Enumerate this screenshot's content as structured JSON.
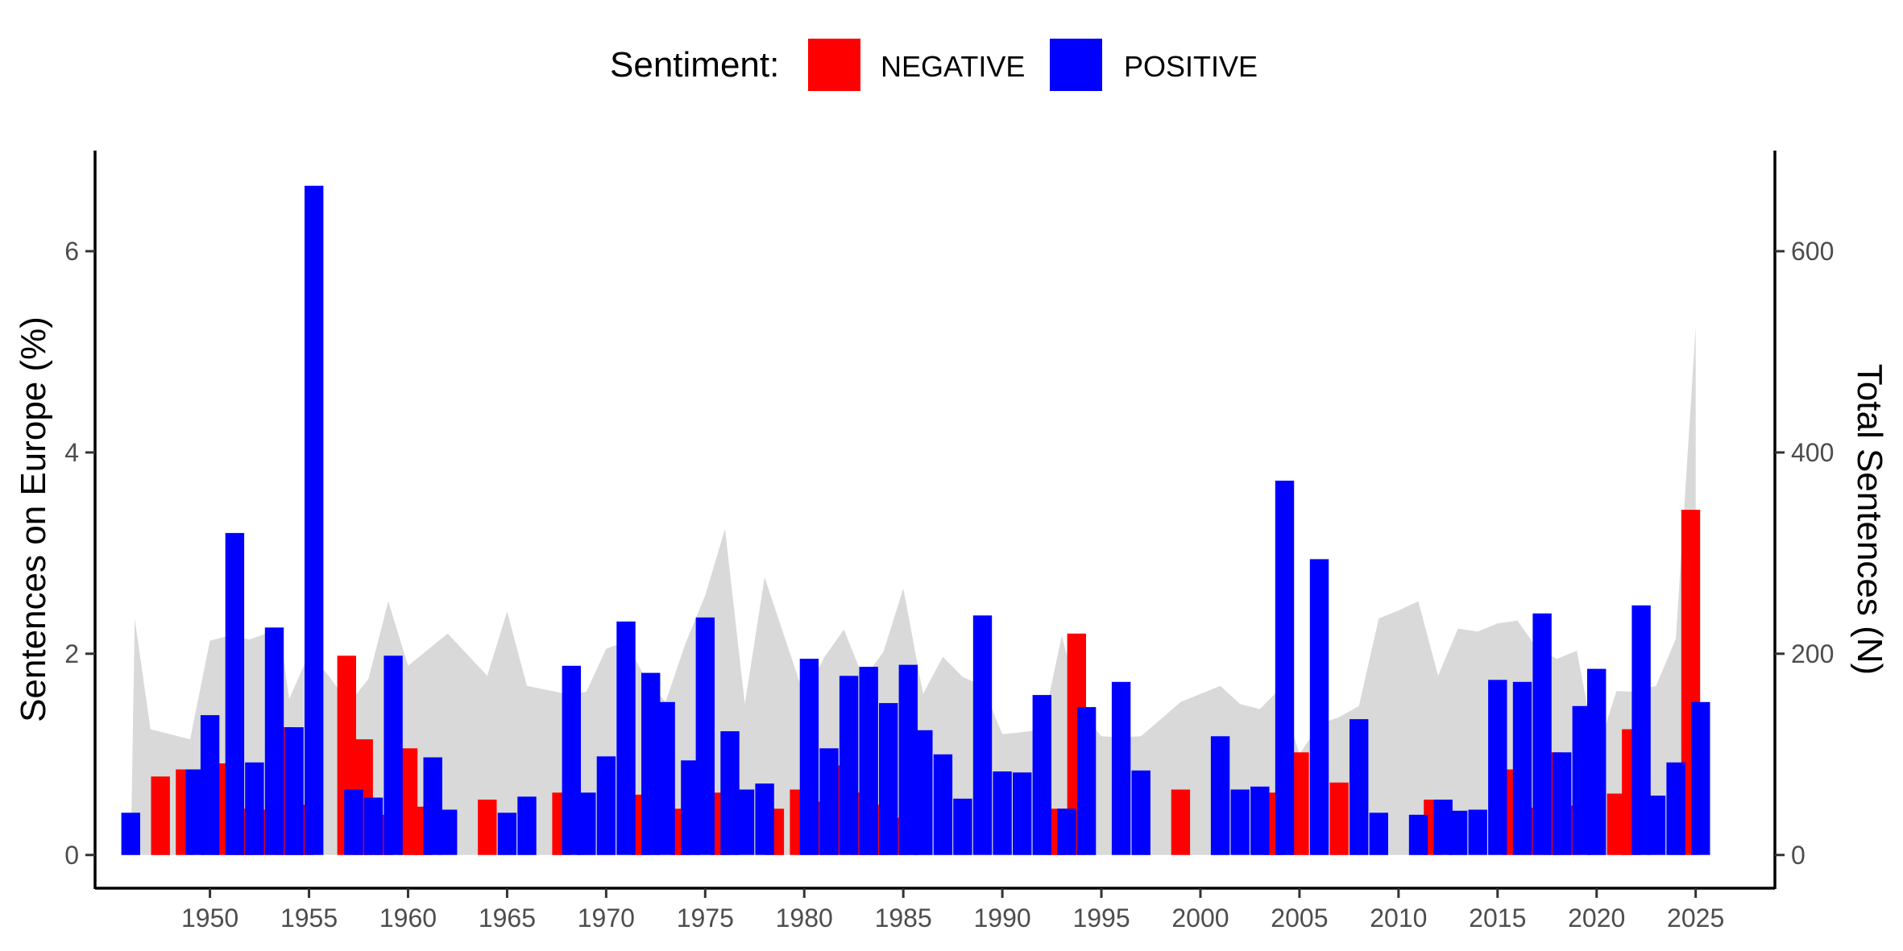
{
  "chart_data": {
    "type": "bar",
    "legend": {
      "title": "Sentiment:",
      "placement": "top-center",
      "entries": [
        {
          "label": "NEGATIVE",
          "color": "#FF0000"
        },
        {
          "label": "POSITIVE",
          "color": "#0000FF"
        }
      ]
    },
    "ylabel": "Sentences on Europe (%)",
    "ylabel_right": "Total Sentences (N)",
    "xlim": [
      1944.2,
      2029
    ],
    "ylim": [
      -0.33,
      7
    ],
    "ylim_right": [
      -33,
      700
    ],
    "xticks": [
      1950,
      1955,
      1960,
      1965,
      1970,
      1975,
      1980,
      1985,
      1990,
      1995,
      2000,
      2005,
      2010,
      2015,
      2020,
      2025
    ],
    "yticks": [
      0,
      2,
      4,
      6
    ],
    "yticks_right": [
      0,
      200,
      400,
      600
    ],
    "grid": false,
    "series": [
      {
        "name": "NEGATIVE",
        "color": "#FF0000",
        "values": [
          {
            "x": 1947.5,
            "y": 0.78
          },
          {
            "x": 1948.75,
            "y": 0.85
          },
          {
            "x": 1950.75,
            "y": 0.91
          },
          {
            "x": 1951.75,
            "y": 0.46
          },
          {
            "x": 1952.75,
            "y": 0.45
          },
          {
            "x": 1953.75,
            "y": 1.27
          },
          {
            "x": 1954.75,
            "y": 0.5
          },
          {
            "x": 1956.9,
            "y": 1.98
          },
          {
            "x": 1957.75,
            "y": 1.15
          },
          {
            "x": 1958.75,
            "y": 0.4
          },
          {
            "x": 1960.0,
            "y": 1.06
          },
          {
            "x": 1960.75,
            "y": 0.48
          },
          {
            "x": 1964.0,
            "y": 0.55
          },
          {
            "x": 1967.75,
            "y": 0.62
          },
          {
            "x": 1971.75,
            "y": 0.6
          },
          {
            "x": 1973.75,
            "y": 0.46
          },
          {
            "x": 1975.75,
            "y": 0.62
          },
          {
            "x": 1978.5,
            "y": 0.46
          },
          {
            "x": 1979.75,
            "y": 0.65
          },
          {
            "x": 1980.75,
            "y": 0.53
          },
          {
            "x": 1981.75,
            "y": 0.89
          },
          {
            "x": 1982.75,
            "y": 0.62
          },
          {
            "x": 1983.75,
            "y": 0.5
          },
          {
            "x": 1984.75,
            "y": 0.37
          },
          {
            "x": 1992.75,
            "y": 0.46
          },
          {
            "x": 1993.75,
            "y": 2.2
          },
          {
            "x": 1999.0,
            "y": 0.65
          },
          {
            "x": 2003.75,
            "y": 0.62
          },
          {
            "x": 2005.0,
            "y": 1.02
          },
          {
            "x": 2007.0,
            "y": 0.72
          },
          {
            "x": 2011.75,
            "y": 0.55
          },
          {
            "x": 2015.75,
            "y": 0.85
          },
          {
            "x": 2016.75,
            "y": 0.47
          },
          {
            "x": 2017.75,
            "y": 1.02
          },
          {
            "x": 2018.75,
            "y": 0.49
          },
          {
            "x": 2021.0,
            "y": 0.61
          },
          {
            "x": 2021.75,
            "y": 1.25
          },
          {
            "x": 2024.75,
            "y": 3.43
          }
        ]
      },
      {
        "name": "POSITIVE",
        "color": "#0000FF",
        "values": [
          {
            "x": 1946.0,
            "y": 0.42
          },
          {
            "x": 1949.25,
            "y": 0.85
          },
          {
            "x": 1950.0,
            "y": 1.39
          },
          {
            "x": 1951.25,
            "y": 3.2
          },
          {
            "x": 1952.25,
            "y": 0.92
          },
          {
            "x": 1953.25,
            "y": 2.26
          },
          {
            "x": 1954.25,
            "y": 1.27
          },
          {
            "x": 1955.25,
            "y": 6.65
          },
          {
            "x": 1957.25,
            "y": 0.65
          },
          {
            "x": 1958.25,
            "y": 0.57
          },
          {
            "x": 1959.25,
            "y": 1.98
          },
          {
            "x": 1961.25,
            "y": 0.97
          },
          {
            "x": 1962.0,
            "y": 0.45
          },
          {
            "x": 1965.0,
            "y": 0.42
          },
          {
            "x": 1966.0,
            "y": 0.58
          },
          {
            "x": 1968.25,
            "y": 1.88
          },
          {
            "x": 1969.0,
            "y": 0.62
          },
          {
            "x": 1970.0,
            "y": 0.98
          },
          {
            "x": 1971.0,
            "y": 2.32
          },
          {
            "x": 1972.25,
            "y": 1.81
          },
          {
            "x": 1973.0,
            "y": 1.52
          },
          {
            "x": 1974.25,
            "y": 0.94
          },
          {
            "x": 1975.0,
            "y": 2.36
          },
          {
            "x": 1976.25,
            "y": 1.23
          },
          {
            "x": 1977.0,
            "y": 0.65
          },
          {
            "x": 1978.0,
            "y": 0.71
          },
          {
            "x": 1980.25,
            "y": 1.95
          },
          {
            "x": 1981.25,
            "y": 1.06
          },
          {
            "x": 1982.25,
            "y": 1.78
          },
          {
            "x": 1983.25,
            "y": 1.87
          },
          {
            "x": 1984.25,
            "y": 1.51
          },
          {
            "x": 1985.25,
            "y": 1.89
          },
          {
            "x": 1986.0,
            "y": 1.24
          },
          {
            "x": 1987.0,
            "y": 1.0
          },
          {
            "x": 1988.0,
            "y": 0.56
          },
          {
            "x": 1989.0,
            "y": 2.38
          },
          {
            "x": 1990.0,
            "y": 0.83
          },
          {
            "x": 1991.0,
            "y": 0.82
          },
          {
            "x": 1992.0,
            "y": 1.59
          },
          {
            "x": 1993.25,
            "y": 0.46
          },
          {
            "x": 1994.25,
            "y": 1.47
          },
          {
            "x": 1996.0,
            "y": 1.72
          },
          {
            "x": 1997.0,
            "y": 0.84
          },
          {
            "x": 2001.0,
            "y": 1.18
          },
          {
            "x": 2002.0,
            "y": 0.65
          },
          {
            "x": 2003.0,
            "y": 0.68
          },
          {
            "x": 2004.25,
            "y": 3.72
          },
          {
            "x": 2006.0,
            "y": 2.94
          },
          {
            "x": 2008.0,
            "y": 1.35
          },
          {
            "x": 2009.0,
            "y": 0.42
          },
          {
            "x": 2011.0,
            "y": 0.4
          },
          {
            "x": 2012.25,
            "y": 0.55
          },
          {
            "x": 2013.0,
            "y": 0.44
          },
          {
            "x": 2014.0,
            "y": 0.45
          },
          {
            "x": 2015.0,
            "y": 1.74
          },
          {
            "x": 2016.25,
            "y": 1.72
          },
          {
            "x": 2017.25,
            "y": 2.4
          },
          {
            "x": 2018.25,
            "y": 1.02
          },
          {
            "x": 2019.25,
            "y": 1.48
          },
          {
            "x": 2020.0,
            "y": 1.85
          },
          {
            "x": 2022.25,
            "y": 2.48
          },
          {
            "x": 2023.0,
            "y": 0.59
          },
          {
            "x": 2024.0,
            "y": 0.92
          },
          {
            "x": 2025.25,
            "y": 1.52
          }
        ]
      }
    ],
    "total_sentences_area": {
      "color": "#D9D9D9",
      "values": [
        {
          "x": 1946.0,
          "y": 0
        },
        {
          "x": 1946.2,
          "y": 235
        },
        {
          "x": 1947.0,
          "y": 125
        },
        {
          "x": 1949.0,
          "y": 115
        },
        {
          "x": 1950.0,
          "y": 213
        },
        {
          "x": 1951.0,
          "y": 218
        },
        {
          "x": 1952.0,
          "y": 214
        },
        {
          "x": 1953.5,
          "y": 225
        },
        {
          "x": 1954.0,
          "y": 155
        },
        {
          "x": 1955.0,
          "y": 200
        },
        {
          "x": 1956.0,
          "y": 178
        },
        {
          "x": 1957.0,
          "y": 150
        },
        {
          "x": 1958.0,
          "y": 175
        },
        {
          "x": 1959.0,
          "y": 252
        },
        {
          "x": 1960.0,
          "y": 188
        },
        {
          "x": 1961.0,
          "y": 204
        },
        {
          "x": 1962.0,
          "y": 220
        },
        {
          "x": 1964.0,
          "y": 178
        },
        {
          "x": 1965.0,
          "y": 242
        },
        {
          "x": 1966.0,
          "y": 168
        },
        {
          "x": 1968.0,
          "y": 160
        },
        {
          "x": 1969.0,
          "y": 162
        },
        {
          "x": 1970.0,
          "y": 205
        },
        {
          "x": 1971.0,
          "y": 212
        },
        {
          "x": 1972.0,
          "y": 175
        },
        {
          "x": 1973.0,
          "y": 152
        },
        {
          "x": 1974.0,
          "y": 210
        },
        {
          "x": 1975.0,
          "y": 258
        },
        {
          "x": 1976.0,
          "y": 324
        },
        {
          "x": 1977.0,
          "y": 150
        },
        {
          "x": 1978.0,
          "y": 276
        },
        {
          "x": 1980.0,
          "y": 158
        },
        {
          "x": 1981.0,
          "y": 196
        },
        {
          "x": 1982.0,
          "y": 224
        },
        {
          "x": 1983.0,
          "y": 175
        },
        {
          "x": 1984.0,
          "y": 202
        },
        {
          "x": 1985.0,
          "y": 265
        },
        {
          "x": 1986.0,
          "y": 160
        },
        {
          "x": 1987.0,
          "y": 197
        },
        {
          "x": 1988.0,
          "y": 177
        },
        {
          "x": 1989.0,
          "y": 168
        },
        {
          "x": 1990.0,
          "y": 120
        },
        {
          "x": 1991.0,
          "y": 122
        },
        {
          "x": 1992.0,
          "y": 125
        },
        {
          "x": 1993.0,
          "y": 218
        },
        {
          "x": 1994.0,
          "y": 142
        },
        {
          "x": 1995.0,
          "y": 118
        },
        {
          "x": 1996.0,
          "y": 117
        },
        {
          "x": 1997.0,
          "y": 118
        },
        {
          "x": 1998.0,
          "y": 135
        },
        {
          "x": 1999.0,
          "y": 152
        },
        {
          "x": 2000.0,
          "y": 160
        },
        {
          "x": 2001.0,
          "y": 168
        },
        {
          "x": 2002.0,
          "y": 150
        },
        {
          "x": 2003.0,
          "y": 145
        },
        {
          "x": 2004.0,
          "y": 165
        },
        {
          "x": 2005.0,
          "y": 100
        },
        {
          "x": 2006.0,
          "y": 130
        },
        {
          "x": 2007.0,
          "y": 137
        },
        {
          "x": 2008.0,
          "y": 148
        },
        {
          "x": 2009.0,
          "y": 235
        },
        {
          "x": 2010.0,
          "y": 243
        },
        {
          "x": 2011.0,
          "y": 252
        },
        {
          "x": 2012.0,
          "y": 178
        },
        {
          "x": 2013.0,
          "y": 225
        },
        {
          "x": 2014.0,
          "y": 222
        },
        {
          "x": 2015.0,
          "y": 230
        },
        {
          "x": 2016.0,
          "y": 233
        },
        {
          "x": 2017.0,
          "y": 205
        },
        {
          "x": 2018.0,
          "y": 195
        },
        {
          "x": 2019.0,
          "y": 203
        },
        {
          "x": 2020.0,
          "y": 100
        },
        {
          "x": 2021.0,
          "y": 163
        },
        {
          "x": 2022.0,
          "y": 162
        },
        {
          "x": 2023.0,
          "y": 168
        },
        {
          "x": 2024.0,
          "y": 215
        },
        {
          "x": 2025.0,
          "y": 525
        },
        {
          "x": 2025.0,
          "y": 0
        }
      ]
    }
  }
}
